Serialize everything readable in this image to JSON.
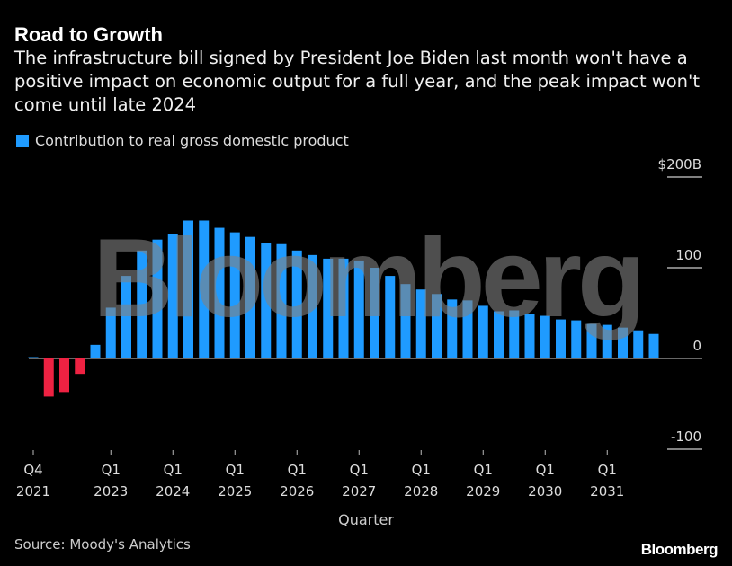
{
  "header": {
    "title": "Road to Growth",
    "subtitle": "The infrastructure bill signed by President Joe Biden last month won't have a positive impact on economic output for a full year, and the peak impact won't come until late 2024"
  },
  "footer": {
    "source": "Source: Moody's Analytics",
    "logo": "Bloomberg"
  },
  "watermark": "Bloomberg",
  "colors": {
    "positive": "#1f9bff",
    "negative": "#ee2242",
    "background": "#000000"
  },
  "chart_data": {
    "type": "bar",
    "legend": [
      {
        "label": "Contribution to real gross domestic product",
        "color": "#1f9bff"
      }
    ],
    "legend_placement": "top-left",
    "xlabel": "Quarter",
    "ylabel": "",
    "ylim": [
      -100,
      200
    ],
    "y_ticks": [
      {
        "value": 200,
        "label": "$200B"
      },
      {
        "value": 100,
        "label": "100"
      },
      {
        "value": 0,
        "label": "0"
      },
      {
        "value": -100,
        "label": "-100"
      }
    ],
    "x_ticks": [
      {
        "index": 0,
        "q": "Q4",
        "year": "2021"
      },
      {
        "index": 5,
        "q": "Q1",
        "year": "2023"
      },
      {
        "index": 9,
        "q": "Q1",
        "year": "2024"
      },
      {
        "index": 13,
        "q": "Q1",
        "year": "2025"
      },
      {
        "index": 17,
        "q": "Q1",
        "year": "2026"
      },
      {
        "index": 21,
        "q": "Q1",
        "year": "2027"
      },
      {
        "index": 25,
        "q": "Q1",
        "year": "2028"
      },
      {
        "index": 29,
        "q": "Q1",
        "year": "2029"
      },
      {
        "index": 33,
        "q": "Q1",
        "year": "2030"
      },
      {
        "index": 37,
        "q": "Q1",
        "year": "2031"
      }
    ],
    "categories": [
      "Q4 2021",
      "Q1 2022",
      "Q2 2022",
      "Q3 2022",
      "Q4 2022",
      "Q1 2023",
      "Q2 2023",
      "Q3 2023",
      "Q4 2023",
      "Q1 2024",
      "Q2 2024",
      "Q3 2024",
      "Q4 2024",
      "Q1 2025",
      "Q2 2025",
      "Q3 2025",
      "Q4 2025",
      "Q1 2026",
      "Q2 2026",
      "Q3 2026",
      "Q4 2026",
      "Q1 2027",
      "Q2 2027",
      "Q3 2027",
      "Q4 2027",
      "Q1 2028",
      "Q2 2028",
      "Q3 2028",
      "Q4 2028",
      "Q1 2029",
      "Q2 2029",
      "Q3 2029",
      "Q4 2029",
      "Q1 2030",
      "Q2 2030",
      "Q3 2030",
      "Q4 2030",
      "Q1 2031",
      "Q2 2031",
      "Q3 2031",
      "Q4 2031"
    ],
    "values": [
      0.5,
      -42,
      -37,
      -17,
      15,
      56,
      91,
      119,
      131,
      137,
      152,
      152,
      144,
      139,
      134,
      127,
      126,
      119,
      114,
      110,
      110,
      108,
      100,
      91,
      82,
      76,
      71,
      65,
      64,
      58,
      52,
      53,
      49,
      47,
      43,
      42,
      38,
      37,
      34,
      31,
      27
    ],
    "grid": "horizontal, right-side short lines"
  }
}
